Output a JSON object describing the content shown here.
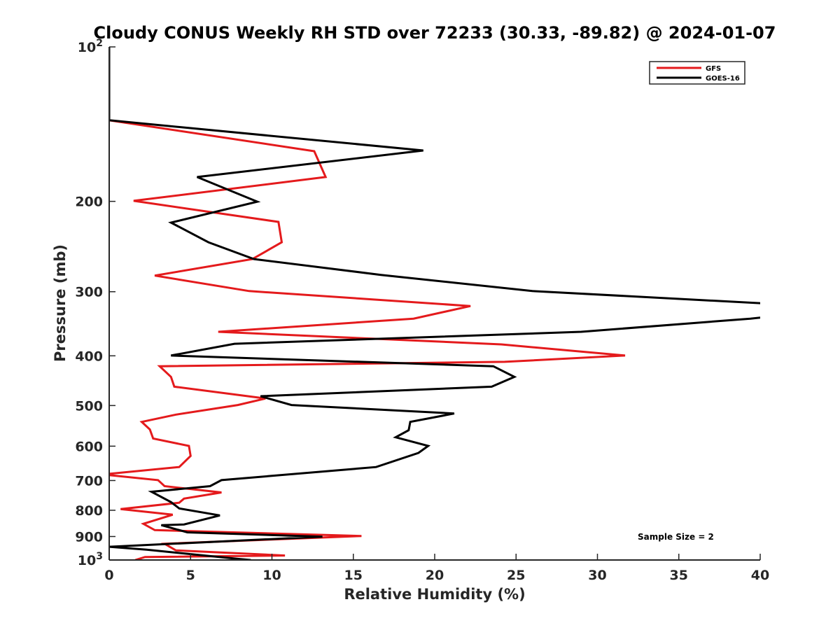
{
  "chart_data": {
    "type": "line",
    "title": "Cloudy CONUS Weekly RH STD over 72233 (30.33, -89.82) @ 2024-01-07",
    "xlabel": "Relative Humidity (%)",
    "ylabel": "Pressure (mb)",
    "xlim": [
      0,
      40
    ],
    "ylim": [
      100,
      1000
    ],
    "y_scale": "log",
    "y_reversed": true,
    "grid": false,
    "x_ticks": [
      0,
      5,
      10,
      15,
      20,
      25,
      30,
      35,
      40
    ],
    "x_tick_labels": [
      "0",
      "5",
      "10",
      "15",
      "20",
      "25",
      "30",
      "35",
      "40"
    ],
    "y_ticks": [
      100,
      200,
      300,
      400,
      500,
      600,
      700,
      800,
      900,
      1000
    ],
    "y_tick_labels": [
      {
        "base": "10",
        "exp": "2"
      },
      {
        "text": "200"
      },
      {
        "text": "300"
      },
      {
        "text": "400"
      },
      {
        "text": "500"
      },
      {
        "text": "600"
      },
      {
        "text": "700"
      },
      {
        "text": "800"
      },
      {
        "text": "900"
      },
      {
        "base": "10",
        "exp": "3"
      }
    ],
    "legend": {
      "placement": "top-right",
      "entries": [
        {
          "name": "GFS",
          "color": "#e41a1c"
        },
        {
          "name": "GOES-16",
          "color": "#000000"
        }
      ]
    },
    "annotations": [
      {
        "text": "Sample Size = 2",
        "placement": "bottom-right"
      }
    ],
    "series": [
      {
        "name": "GFS",
        "color": "#e41a1c",
        "rh": [
          0,
          0,
          12.6,
          13.3,
          1.5,
          10.4,
          10.6,
          8.8,
          2.8,
          8.6,
          22.2,
          18.7,
          6.7,
          24.1,
          31.7,
          24.3,
          3.1,
          3.8,
          4.0,
          9.6,
          7.9,
          4.1,
          2.0,
          2.5,
          2.7,
          4.9,
          5.0,
          4.3,
          -0.4,
          3.0,
          3.4,
          6.9,
          4.6,
          4.3,
          0.7,
          3.9,
          2.1,
          2.8,
          15.5,
          3.4,
          4.1,
          10.8,
          2.2,
          1.6
        ],
        "pressure": [
          100,
          139,
          159.7,
          179.3,
          199.5,
          219.3,
          240.3,
          259.1,
          279.1,
          299.1,
          319.9,
          338.5,
          359.1,
          380,
          399.5,
          410.9,
          419.2,
          439.6,
          459.4,
          484.4,
          498.8,
          520.8,
          538,
          556.6,
          579.8,
          599.3,
          626.8,
          659,
          681.2,
          698.8,
          718,
          738.5,
          759.3,
          773.5,
          795.9,
          816.1,
          850,
          874.6,
          897.8,
          929.6,
          957.8,
          980.2,
          986.6,
          1000
        ]
      },
      {
        "name": "GOES-16",
        "color": "#000000",
        "rh": [
          0,
          0,
          19.3,
          5.4,
          9.1,
          3.8,
          6.1,
          8.9,
          16.7,
          26.0,
          45.0,
          42.0,
          39.4,
          29.0,
          7.7,
          3.8,
          23.6,
          24.9,
          23.5,
          9.3,
          11.2,
          21.2,
          18.5,
          18.4,
          17.6,
          19.6,
          19.0,
          16.4,
          6.9,
          6.2,
          2.6,
          3.8,
          4.3,
          6.8,
          4.6,
          3.2,
          4.8,
          13.1,
          0,
          2.3,
          7.9,
          8.7
        ],
        "pressure": [
          100,
          139,
          159.2,
          179.3,
          200.3,
          220,
          240.3,
          259.1,
          278.2,
          299.1,
          322,
          332,
          338.5,
          359.1,
          379,
          399.5,
          419.2,
          439.6,
          459.4,
          479.4,
          498.8,
          518.2,
          538,
          558.6,
          576.5,
          599.3,
          618.4,
          659,
          698.8,
          718,
          736.2,
          771.1,
          793.4,
          818.6,
          852.6,
          855.3,
          883.3,
          900.6,
          942.5,
          954.8,
          995,
          1000
        ]
      }
    ]
  }
}
